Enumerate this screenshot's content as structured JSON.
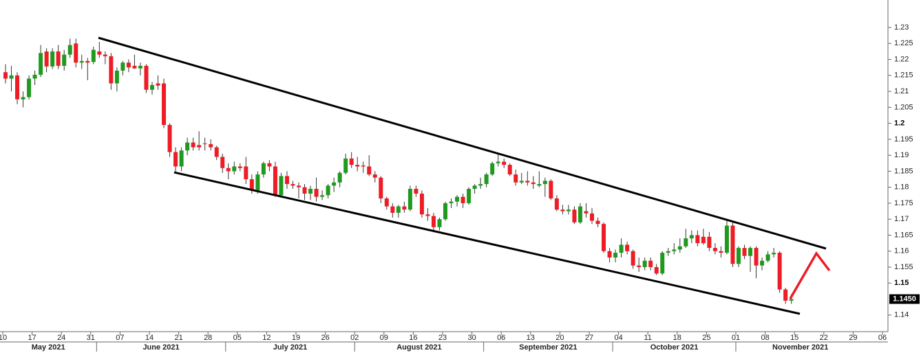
{
  "chart_data": {
    "type": "candlestick",
    "up_color": "#1f9a1f",
    "down_color": "#ee1c25",
    "wick_color": "#333333",
    "x": [
      "2021-05-10",
      "2021-05-11",
      "2021-05-12",
      "2021-05-13",
      "2021-05-14",
      "2021-05-17",
      "2021-05-18",
      "2021-05-19",
      "2021-05-20",
      "2021-05-21",
      "2021-05-24",
      "2021-05-25",
      "2021-05-26",
      "2021-05-27",
      "2021-05-28",
      "2021-05-31",
      "2021-06-01",
      "2021-06-02",
      "2021-06-03",
      "2021-06-04",
      "2021-06-07",
      "2021-06-08",
      "2021-06-09",
      "2021-06-10",
      "2021-06-11",
      "2021-06-14",
      "2021-06-15",
      "2021-06-16",
      "2021-06-17",
      "2021-06-18",
      "2021-06-21",
      "2021-06-22",
      "2021-06-23",
      "2021-06-24",
      "2021-06-25",
      "2021-06-28",
      "2021-06-29",
      "2021-06-30",
      "2021-07-01",
      "2021-07-02",
      "2021-07-05",
      "2021-07-06",
      "2021-07-07",
      "2021-07-08",
      "2021-07-09",
      "2021-07-12",
      "2021-07-13",
      "2021-07-14",
      "2021-07-15",
      "2021-07-16",
      "2021-07-19",
      "2021-07-20",
      "2021-07-21",
      "2021-07-22",
      "2021-07-23",
      "2021-07-26",
      "2021-07-27",
      "2021-07-28",
      "2021-07-29",
      "2021-07-30",
      "2021-08-02",
      "2021-08-03",
      "2021-08-04",
      "2021-08-05",
      "2021-08-06",
      "2021-08-09",
      "2021-08-10",
      "2021-08-11",
      "2021-08-12",
      "2021-08-13",
      "2021-08-16",
      "2021-08-17",
      "2021-08-18",
      "2021-08-19",
      "2021-08-20",
      "2021-08-23",
      "2021-08-24",
      "2021-08-25",
      "2021-08-26",
      "2021-08-27",
      "2021-08-30",
      "2021-08-31",
      "2021-09-01",
      "2021-09-02",
      "2021-09-03",
      "2021-09-06",
      "2021-09-07",
      "2021-09-08",
      "2021-09-09",
      "2021-09-10",
      "2021-09-13",
      "2021-09-14",
      "2021-09-15",
      "2021-09-16",
      "2021-09-17",
      "2021-09-20",
      "2021-09-21",
      "2021-09-22",
      "2021-09-23",
      "2021-09-24",
      "2021-09-27",
      "2021-09-28",
      "2021-09-29",
      "2021-09-30",
      "2021-10-01",
      "2021-10-04",
      "2021-10-05",
      "2021-10-06",
      "2021-10-07",
      "2021-10-08",
      "2021-10-11",
      "2021-10-12",
      "2021-10-13",
      "2021-10-14",
      "2021-10-15",
      "2021-10-18",
      "2021-10-19",
      "2021-10-20",
      "2021-10-21",
      "2021-10-22",
      "2021-10-25",
      "2021-10-26",
      "2021-10-27",
      "2021-10-28",
      "2021-10-29",
      "2021-11-01",
      "2021-11-02",
      "2021-11-03",
      "2021-11-04",
      "2021-11-05",
      "2021-11-08",
      "2021-11-09",
      "2021-11-10",
      "2021-11-11",
      "2021-11-12"
    ],
    "ohlc": [
      [
        1.216,
        1.2185,
        1.2125,
        1.214
      ],
      [
        1.214,
        1.218,
        1.21,
        1.215
      ],
      [
        1.215,
        1.216,
        1.206,
        1.2075
      ],
      [
        1.2075,
        1.21,
        1.205,
        1.2082
      ],
      [
        1.2082,
        1.215,
        1.2075,
        1.214
      ],
      [
        1.214,
        1.2165,
        1.212,
        1.2152
      ],
      [
        1.2152,
        1.2245,
        1.2145,
        1.222
      ],
      [
        1.2225,
        1.2235,
        1.216,
        1.2178
      ],
      [
        1.2178,
        1.2235,
        1.217,
        1.2225
      ],
      [
        1.2225,
        1.2245,
        1.217,
        1.218
      ],
      [
        1.218,
        1.223,
        1.2165,
        1.2215
      ],
      [
        1.2215,
        1.2265,
        1.2205,
        1.2245
      ],
      [
        1.225,
        1.2265,
        1.2175,
        1.219
      ],
      [
        1.219,
        1.2215,
        1.217,
        1.2195
      ],
      [
        1.2195,
        1.2205,
        1.2135,
        1.219
      ],
      [
        1.2192,
        1.224,
        1.2185,
        1.223
      ],
      [
        1.2225,
        1.2255,
        1.2205,
        1.2215
      ],
      [
        1.2215,
        1.2225,
        1.2185,
        1.221
      ],
      [
        1.221,
        1.222,
        1.2105,
        1.2125
      ],
      [
        1.2125,
        1.2175,
        1.21,
        1.2165
      ],
      [
        1.2165,
        1.2195,
        1.215,
        1.219
      ],
      [
        1.219,
        1.22,
        1.216,
        1.2175
      ],
      [
        1.218,
        1.2215,
        1.217,
        1.2172
      ],
      [
        1.2172,
        1.219,
        1.215,
        1.218
      ],
      [
        1.218,
        1.2185,
        1.2095,
        1.2105
      ],
      [
        1.2105,
        1.213,
        1.209,
        1.212
      ],
      [
        1.2125,
        1.215,
        1.2105,
        1.2118
      ],
      [
        1.2125,
        1.214,
        1.1985,
        1.1995
      ],
      [
        1.1995,
        1.2,
        1.1895,
        1.191
      ],
      [
        1.191,
        1.1925,
        1.1845,
        1.1865
      ],
      [
        1.1865,
        1.1925,
        1.185,
        1.1915
      ],
      [
        1.1915,
        1.1955,
        1.19,
        1.194
      ],
      [
        1.194,
        1.1955,
        1.1915,
        1.1925
      ],
      [
        1.1932,
        1.1975,
        1.1915,
        1.1925
      ],
      [
        1.1937,
        1.1955,
        1.1915,
        1.1935
      ],
      [
        1.1935,
        1.195,
        1.1915,
        1.1925
      ],
      [
        1.1925,
        1.193,
        1.1885,
        1.1895
      ],
      [
        1.1895,
        1.1905,
        1.1845,
        1.186
      ],
      [
        1.186,
        1.1875,
        1.1825,
        1.185
      ],
      [
        1.185,
        1.188,
        1.184,
        1.1865
      ],
      [
        1.1865,
        1.1875,
        1.185,
        1.186
      ],
      [
        1.1865,
        1.1895,
        1.181,
        1.1825
      ],
      [
        1.1825,
        1.184,
        1.178,
        1.179
      ],
      [
        1.179,
        1.185,
        1.178,
        1.184
      ],
      [
        1.184,
        1.188,
        1.183,
        1.1875
      ],
      [
        1.1875,
        1.1885,
        1.185,
        1.1865
      ],
      [
        1.1865,
        1.188,
        1.177,
        1.1775
      ],
      [
        1.1775,
        1.1845,
        1.177,
        1.1835
      ],
      [
        1.1835,
        1.185,
        1.1795,
        1.181
      ],
      [
        1.181,
        1.182,
        1.1795,
        1.1805
      ],
      [
        1.1805,
        1.1815,
        1.1765,
        1.18
      ],
      [
        1.18,
        1.181,
        1.176,
        1.178
      ],
      [
        1.178,
        1.1805,
        1.176,
        1.1795
      ],
      [
        1.1795,
        1.183,
        1.1755,
        1.177
      ],
      [
        1.177,
        1.179,
        1.176,
        1.1775
      ],
      [
        1.1775,
        1.181,
        1.1765,
        1.1805
      ],
      [
        1.1805,
        1.183,
        1.1785,
        1.1815
      ],
      [
        1.1815,
        1.185,
        1.18,
        1.1845
      ],
      [
        1.1845,
        1.1905,
        1.184,
        1.189
      ],
      [
        1.189,
        1.191,
        1.186,
        1.187
      ],
      [
        1.187,
        1.1895,
        1.185,
        1.1865
      ],
      [
        1.1868,
        1.188,
        1.1845,
        1.1865
      ],
      [
        1.1865,
        1.19,
        1.1835,
        1.184
      ],
      [
        1.184,
        1.185,
        1.1815,
        1.183
      ],
      [
        1.183,
        1.1835,
        1.175,
        1.1765
      ],
      [
        1.1765,
        1.177,
        1.173,
        1.174
      ],
      [
        1.174,
        1.175,
        1.1705,
        1.172
      ],
      [
        1.172,
        1.1745,
        1.1705,
        1.174
      ],
      [
        1.174,
        1.1755,
        1.172,
        1.173
      ],
      [
        1.173,
        1.1805,
        1.1725,
        1.1795
      ],
      [
        1.1795,
        1.1805,
        1.177,
        1.178
      ],
      [
        1.178,
        1.179,
        1.1705,
        1.1715
      ],
      [
        1.1715,
        1.1735,
        1.1695,
        1.171
      ],
      [
        1.171,
        1.172,
        1.1665,
        1.1675
      ],
      [
        1.1675,
        1.1705,
        1.1665,
        1.17
      ],
      [
        1.17,
        1.1755,
        1.1695,
        1.175
      ],
      [
        1.175,
        1.1765,
        1.1735,
        1.1755
      ],
      [
        1.1755,
        1.1775,
        1.174,
        1.177
      ],
      [
        1.177,
        1.178,
        1.1735,
        1.175
      ],
      [
        1.175,
        1.18,
        1.1745,
        1.1795
      ],
      [
        1.1795,
        1.181,
        1.178,
        1.1805
      ],
      [
        1.1805,
        1.183,
        1.1795,
        1.181
      ],
      [
        1.181,
        1.1845,
        1.18,
        1.184
      ],
      [
        1.184,
        1.188,
        1.1835,
        1.1875
      ],
      [
        1.1875,
        1.1905,
        1.1865,
        1.188
      ],
      [
        1.188,
        1.189,
        1.186,
        1.187
      ],
      [
        1.187,
        1.1875,
        1.1835,
        1.184
      ],
      [
        1.184,
        1.1855,
        1.1805,
        1.1815
      ],
      [
        1.1815,
        1.1845,
        1.181,
        1.182
      ],
      [
        1.182,
        1.185,
        1.1805,
        1.1815
      ],
      [
        1.1815,
        1.1835,
        1.1795,
        1.181
      ],
      [
        1.1805,
        1.185,
        1.18,
        1.181
      ],
      [
        1.181,
        1.183,
        1.177,
        1.182
      ],
      [
        1.182,
        1.1825,
        1.176,
        1.1765
      ],
      [
        1.1765,
        1.1775,
        1.1725,
        1.173
      ],
      [
        1.173,
        1.1745,
        1.1715,
        1.1725
      ],
      [
        1.1725,
        1.1745,
        1.1715,
        1.173
      ],
      [
        1.173,
        1.174,
        1.1685,
        1.169
      ],
      [
        1.169,
        1.175,
        1.1685,
        1.174
      ],
      [
        1.1725,
        1.175,
        1.1705,
        1.1718
      ],
      [
        1.1718,
        1.1735,
        1.1685,
        1.1695
      ],
      [
        1.1695,
        1.1705,
        1.1675,
        1.1685
      ],
      [
        1.1685,
        1.169,
        1.1595,
        1.16
      ],
      [
        1.16,
        1.161,
        1.1565,
        1.158
      ],
      [
        1.158,
        1.1605,
        1.1565,
        1.1595
      ],
      [
        1.1595,
        1.164,
        1.158,
        1.162
      ],
      [
        1.162,
        1.163,
        1.159,
        1.16
      ],
      [
        1.16,
        1.1605,
        1.1545,
        1.1555
      ],
      [
        1.1555,
        1.158,
        1.1535,
        1.155
      ],
      [
        1.155,
        1.158,
        1.154,
        1.157
      ],
      [
        1.157,
        1.158,
        1.154,
        1.155
      ],
      [
        1.155,
        1.156,
        1.1525,
        1.153
      ],
      [
        1.153,
        1.16,
        1.1525,
        1.1595
      ],
      [
        1.1595,
        1.161,
        1.1585,
        1.16
      ],
      [
        1.16,
        1.1625,
        1.159,
        1.1605
      ],
      [
        1.1605,
        1.164,
        1.1595,
        1.1615
      ],
      [
        1.1615,
        1.167,
        1.161,
        1.164
      ],
      [
        1.164,
        1.1665,
        1.1625,
        1.165
      ],
      [
        1.165,
        1.1665,
        1.1615,
        1.1625
      ],
      [
        1.1645,
        1.167,
        1.162,
        1.1625
      ],
      [
        1.1645,
        1.166,
        1.16,
        1.161
      ],
      [
        1.161,
        1.1625,
        1.159,
        1.16
      ],
      [
        1.16,
        1.1615,
        1.158,
        1.1595
      ],
      [
        1.1595,
        1.1695,
        1.159,
        1.168
      ],
      [
        1.168,
        1.169,
        1.155,
        1.156
      ],
      [
        1.156,
        1.1615,
        1.155,
        1.161
      ],
      [
        1.161,
        1.162,
        1.1575,
        1.1585
      ],
      [
        1.1585,
        1.1615,
        1.1535,
        1.161
      ],
      [
        1.161,
        1.1615,
        1.1515,
        1.1555
      ],
      [
        1.1555,
        1.158,
        1.154,
        1.157
      ],
      [
        1.157,
        1.16,
        1.1565,
        1.159
      ],
      [
        1.159,
        1.161,
        1.158,
        1.1595
      ],
      [
        1.1595,
        1.16,
        1.147,
        1.148
      ],
      [
        1.148,
        1.1485,
        1.1435,
        1.1445
      ],
      [
        1.1445,
        1.1465,
        1.1435,
        1.145
      ]
    ],
    "ylim": [
      1.1348,
      1.2386
    ],
    "yticks": [
      1.14,
      1.15,
      1.155,
      1.16,
      1.165,
      1.17,
      1.175,
      1.18,
      1.185,
      1.19,
      1.195,
      1.2,
      1.205,
      1.21,
      1.215,
      1.22,
      1.225,
      1.23
    ],
    "bold_yticks": [
      1.15,
      1.2
    ],
    "xticks": [
      {
        "value": "2021-05-10",
        "label": "10"
      },
      {
        "value": "2021-05-17",
        "label": "17"
      },
      {
        "value": "2021-05-24",
        "label": "24"
      },
      {
        "value": "2021-05-31",
        "label": "31"
      },
      {
        "value": "2021-06-07",
        "label": "07"
      },
      {
        "value": "2021-06-14",
        "label": "14"
      },
      {
        "value": "2021-06-21",
        "label": "21"
      },
      {
        "value": "2021-06-28",
        "label": "28"
      },
      {
        "value": "2021-07-05",
        "label": "05"
      },
      {
        "value": "2021-07-12",
        "label": "12"
      },
      {
        "value": "2021-07-19",
        "label": "19"
      },
      {
        "value": "2021-07-26",
        "label": "26"
      },
      {
        "value": "2021-08-02",
        "label": "02"
      },
      {
        "value": "2021-08-09",
        "label": "09"
      },
      {
        "value": "2021-08-16",
        "label": "16"
      },
      {
        "value": "2021-08-23",
        "label": "23"
      },
      {
        "value": "2021-08-30",
        "label": "30"
      },
      {
        "value": "2021-09-06",
        "label": "06"
      },
      {
        "value": "2021-09-13",
        "label": "13"
      },
      {
        "value": "2021-09-20",
        "label": "20"
      },
      {
        "value": "2021-09-27",
        "label": "27"
      },
      {
        "value": "2021-10-04",
        "label": "04"
      },
      {
        "value": "2021-10-11",
        "label": "11"
      },
      {
        "value": "2021-10-18",
        "label": "18"
      },
      {
        "value": "2021-10-25",
        "label": "25"
      },
      {
        "value": "2021-11-01",
        "label": "01"
      },
      {
        "value": "2021-11-08",
        "label": "08"
      },
      {
        "value": "2021-11-15",
        "label": "15"
      },
      {
        "value": "2021-11-22",
        "label": "22"
      },
      {
        "value": "2021-11-29",
        "label": "29"
      },
      {
        "value": "2021-12-06",
        "label": "06"
      }
    ],
    "months": [
      {
        "value": "2021-05-01",
        "label": "May 2021"
      },
      {
        "value": "2021-06-01",
        "label": "June 2021"
      },
      {
        "value": "2021-07-01",
        "label": "July 2021"
      },
      {
        "value": "2021-08-01",
        "label": "August 2021"
      },
      {
        "value": "2021-09-01",
        "label": "September 2021"
      },
      {
        "value": "2021-10-01",
        "label": "October 2021"
      },
      {
        "value": "2021-11-01",
        "label": "November 2021"
      }
    ],
    "last_price": {
      "value": 1.145,
      "label": "1.1450"
    }
  }
}
